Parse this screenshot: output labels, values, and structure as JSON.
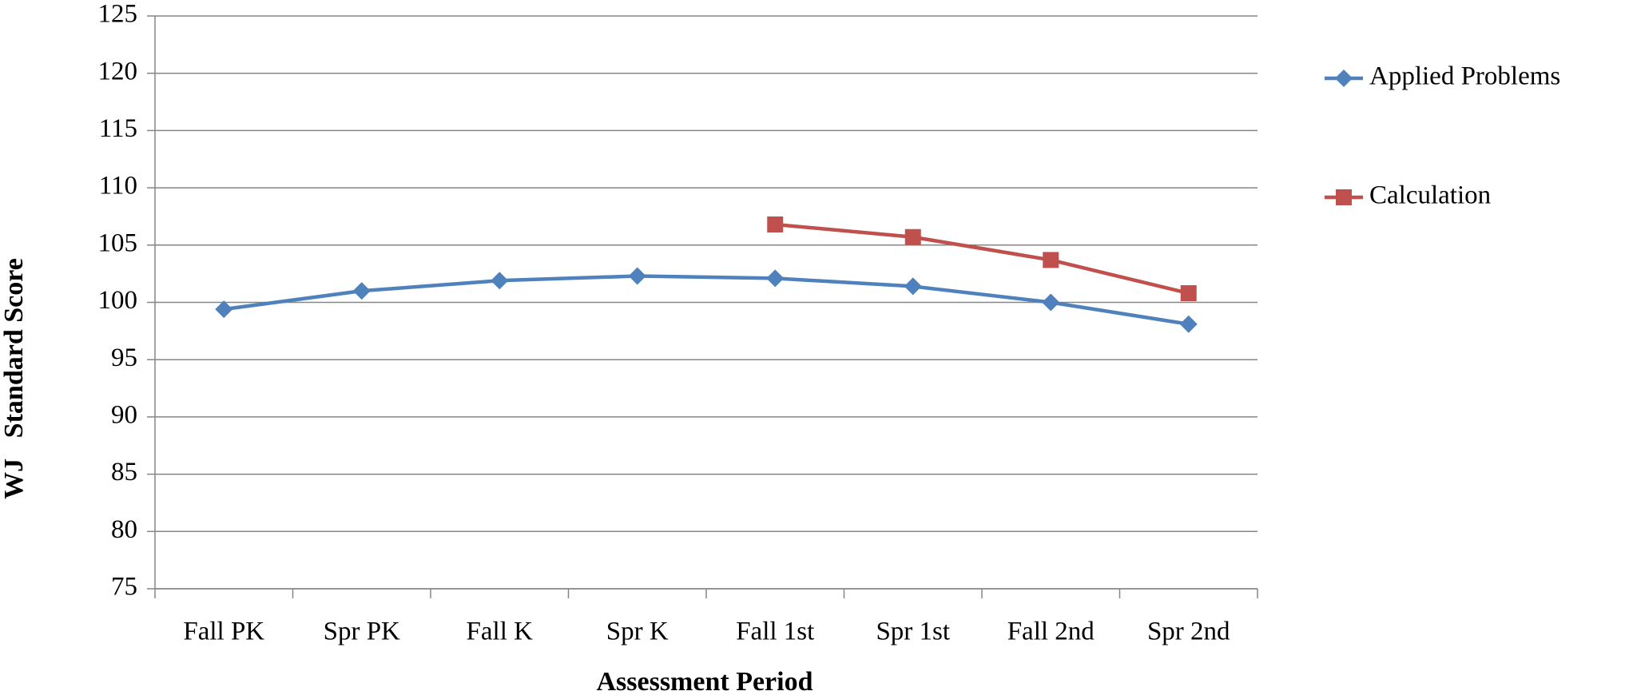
{
  "chart_data": {
    "type": "line",
    "x_label": "Assessment Period",
    "y_label": "WJ   Standard Score",
    "categories": [
      "Fall PK",
      "Spr PK",
      "Fall K",
      "Spr K",
      "Fall 1st",
      "Spr 1st",
      "Fall 2nd",
      "Spr 2nd"
    ],
    "series": [
      {
        "name": "Applied Problems",
        "color": "#4f81bd",
        "marker": "diamond",
        "values": [
          99.4,
          101.0,
          101.9,
          102.3,
          102.1,
          101.4,
          100.0,
          98.1
        ]
      },
      {
        "name": "Calculation",
        "color": "#c0504d",
        "marker": "square",
        "values": [
          null,
          null,
          null,
          null,
          106.8,
          105.7,
          103.7,
          100.8
        ]
      }
    ],
    "ylim": [
      75,
      125
    ],
    "yticks": [
      75,
      80,
      85,
      90,
      95,
      100,
      105,
      110,
      115,
      120,
      125
    ],
    "grid": true,
    "legend": "right"
  }
}
